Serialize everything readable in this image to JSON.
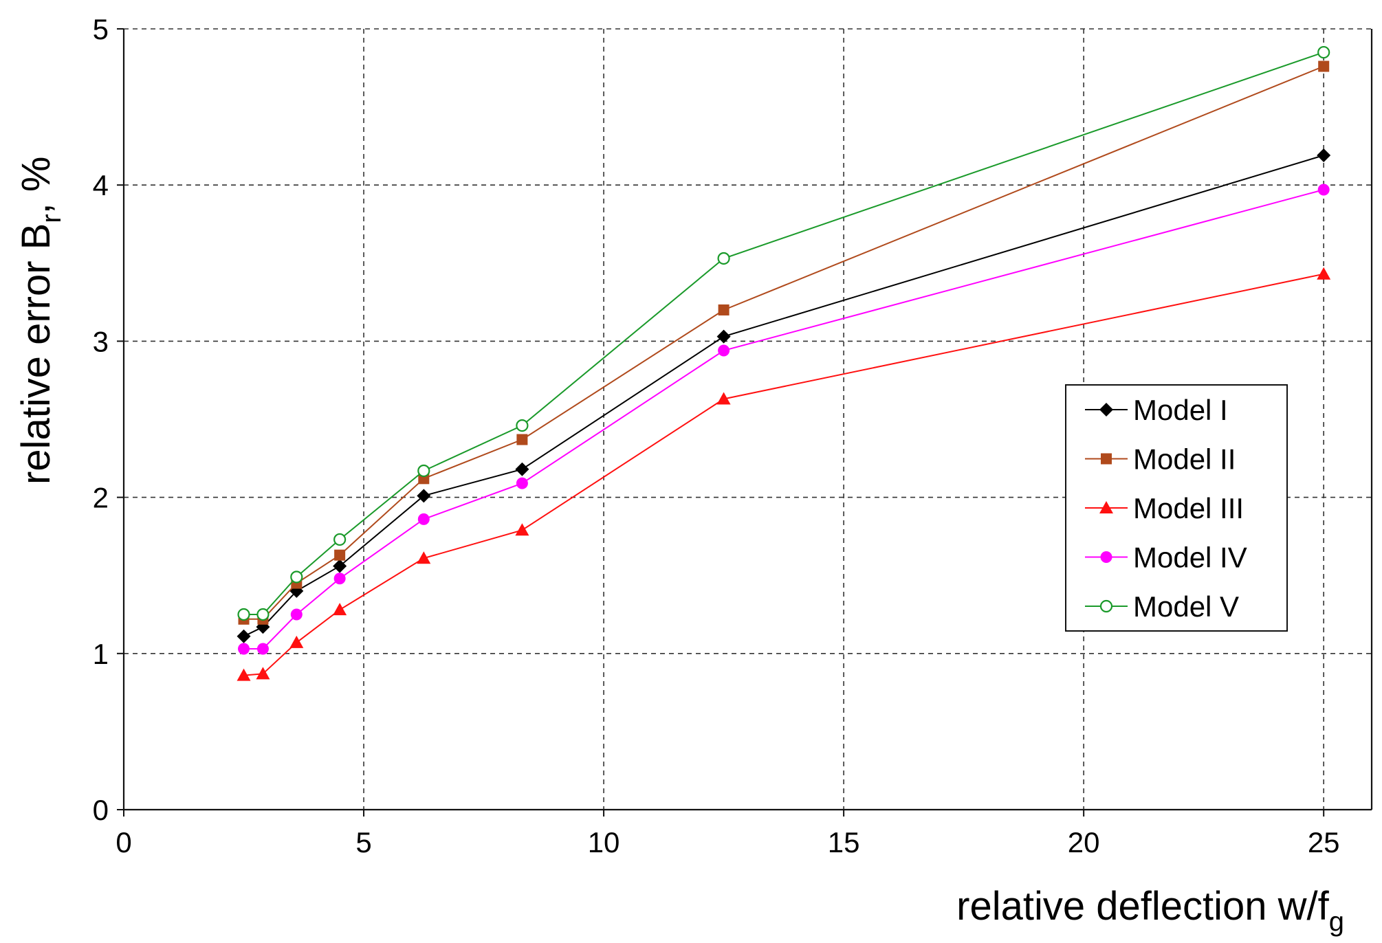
{
  "chart_data": {
    "type": "line",
    "title": "",
    "xlabel_main": "relative deflection w/f",
    "xlabel_sub": "g",
    "ylabel_main": "relative error B",
    "ylabel_sub": "r",
    "ylabel_suffix": ",  %",
    "xlim": [
      0,
      26
    ],
    "ylim": [
      0,
      5
    ],
    "xticks": [
      0,
      5,
      10,
      15,
      20,
      25
    ],
    "yticks": [
      0,
      1,
      2,
      3,
      4,
      5
    ],
    "xtick_labels": [
      "0",
      "5",
      "10",
      "15",
      "20",
      "25"
    ],
    "ytick_labels": [
      "0",
      "1",
      "2",
      "3",
      "4",
      "5"
    ],
    "grid": true,
    "legend_position": "center-right",
    "x": [
      2.5,
      2.9,
      3.6,
      4.5,
      6.25,
      8.3,
      12.5,
      25
    ],
    "series": [
      {
        "name": "Model I",
        "marker": "diamond",
        "color": "#000000",
        "values": [
          1.11,
          1.17,
          1.4,
          1.56,
          2.01,
          2.18,
          3.03,
          4.19
        ]
      },
      {
        "name": "Model II",
        "marker": "square",
        "color": "#b04a1c",
        "values": [
          1.22,
          1.22,
          1.45,
          1.63,
          2.12,
          2.37,
          3.2,
          4.76
        ]
      },
      {
        "name": "Model III",
        "marker": "triangle",
        "color": "#ff1010",
        "values": [
          0.86,
          0.87,
          1.07,
          1.28,
          1.61,
          1.79,
          2.63,
          3.43
        ]
      },
      {
        "name": "Model IV",
        "marker": "circle",
        "color": "#ff00ff",
        "values": [
          1.03,
          1.03,
          1.25,
          1.48,
          1.86,
          2.09,
          2.94,
          3.97
        ]
      },
      {
        "name": "Model V",
        "marker": "open-circle",
        "color": "#1a9a2a",
        "values": [
          1.25,
          1.25,
          1.49,
          1.73,
          2.17,
          2.46,
          3.53,
          4.85
        ]
      }
    ]
  }
}
